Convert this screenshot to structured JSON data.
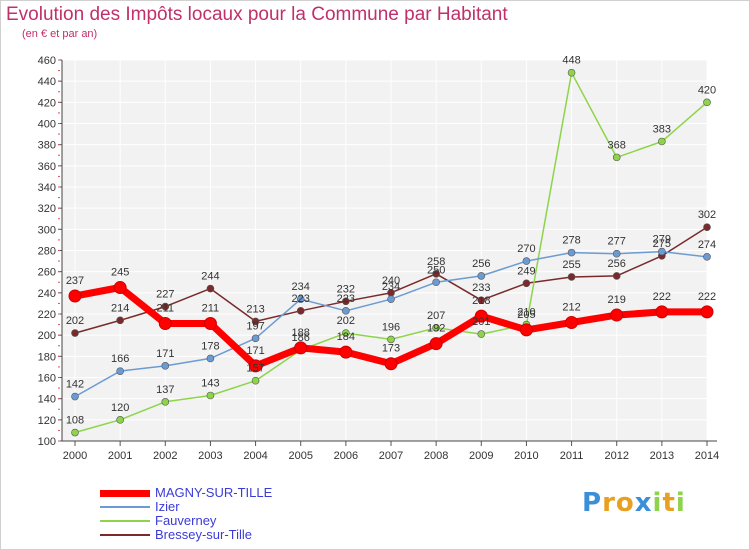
{
  "chart_data": {
    "type": "line",
    "title": "Evolution des Impôts locaux pour la Commune par Habitant",
    "subtitle": "(en € et par an)",
    "x": [
      "2000",
      "2001",
      "2002",
      "2003",
      "2004",
      "2005",
      "2006",
      "2007",
      "2008",
      "2009",
      "2010",
      "2011",
      "2012",
      "2013",
      "2014"
    ],
    "ylim": [
      100,
      460
    ],
    "yticks": [
      100,
      120,
      140,
      160,
      180,
      200,
      220,
      240,
      260,
      280,
      300,
      320,
      340,
      360,
      380,
      400,
      420,
      440,
      460
    ],
    "grid": true,
    "legend_position": "bottom-left",
    "series": [
      {
        "name": "MAGNY-SUR-TILLE",
        "color": "#ff0000",
        "values": [
          237,
          245,
          211,
          211,
          171,
          188,
          184,
          173,
          192,
          218,
          205,
          212,
          219,
          222,
          222
        ],
        "labels": [
          "237",
          "245",
          "211",
          "211",
          "171",
          "188",
          "184",
          "173",
          "192",
          "218",
          "205",
          "212",
          "219",
          "222",
          "222"
        ]
      },
      {
        "name": "Izier",
        "color": "#6b9bd2",
        "values": [
          142,
          166,
          171,
          178,
          197,
          234,
          223,
          234,
          250,
          256,
          270,
          278,
          277,
          279,
          274
        ],
        "labels": [
          "142",
          "166",
          "171",
          "178",
          "197",
          "234",
          "223",
          "234",
          "250",
          "256",
          "270",
          "278",
          "277",
          "279",
          "274"
        ]
      },
      {
        "name": "Fauverney",
        "color": "#8ed44a",
        "values": [
          108,
          120,
          137,
          143,
          157,
          186,
          202,
          196,
          207,
          201,
          210,
          448,
          368,
          383,
          420
        ],
        "labels": [
          "108",
          "120",
          "137",
          "143",
          "157",
          "186",
          "202",
          "196",
          "207",
          "201",
          "210",
          "448",
          "368",
          "383",
          "420"
        ]
      },
      {
        "name": "Bressey-sur-Tille",
        "color": "#7a2a2a",
        "values": [
          202,
          214,
          227,
          244,
          213,
          223,
          232,
          240,
          258,
          233,
          249,
          255,
          256,
          275,
          302
        ],
        "labels": [
          "202",
          "214",
          "227",
          "244",
          "213",
          "223",
          "232",
          "240",
          "258",
          "233",
          "249",
          "255",
          "256",
          "275",
          "302"
        ]
      }
    ]
  },
  "logo": {
    "letters": [
      "P",
      "r",
      "o",
      "x",
      "i",
      "t",
      "i"
    ],
    "colors": [
      "#3a8fd8",
      "#e8a020",
      "#e8a020",
      "#3a8fd8",
      "#8ed44a",
      "#e8a020",
      "#8ed44a"
    ]
  }
}
